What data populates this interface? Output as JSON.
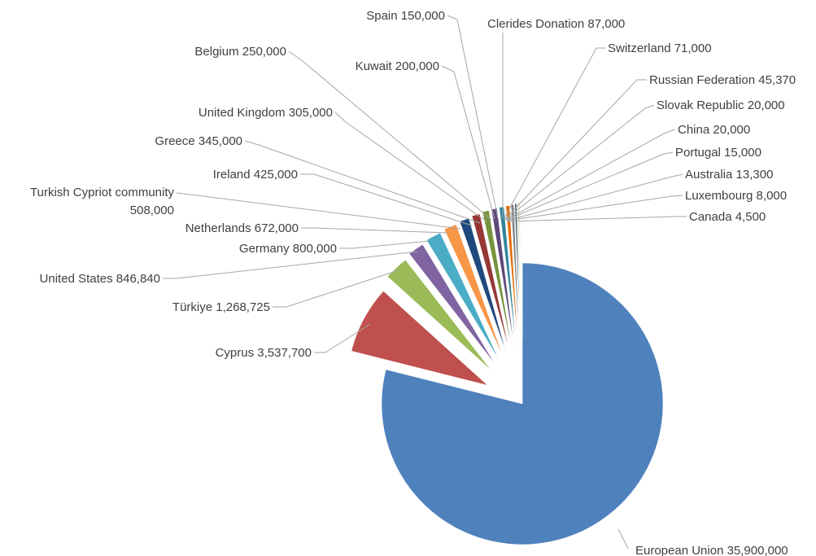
{
  "chart_data": {
    "type": "pie",
    "title": "",
    "legend": "none",
    "exploded": true,
    "slices": [
      {
        "label": "European Union",
        "value": 35900000,
        "display": "European Union 35,900,000",
        "color": "#4f81bd"
      },
      {
        "label": "Cyprus",
        "value": 3537700,
        "display": "Cyprus 3,537,700",
        "color": "#c0504d"
      },
      {
        "label": "Türkiye",
        "value": 1268725,
        "display": "Türkiye 1,268,725",
        "color": "#9bbb59"
      },
      {
        "label": "United States",
        "value": 846840,
        "display": "United States  846,840",
        "color": "#8064a2"
      },
      {
        "label": "Germany",
        "value": 800000,
        "display": "Germany 800,000",
        "color": "#4bacc6"
      },
      {
        "label": "Netherlands",
        "value": 672000,
        "display": "Netherlands 672,000",
        "color": "#f79646"
      },
      {
        "label": "Turkish Cypriot community",
        "value": 508000,
        "display": [
          "Turkish Cypriot community",
          "508,000"
        ],
        "color": "#1f497d"
      },
      {
        "label": "Ireland",
        "value": 425000,
        "display": "Ireland 425,000",
        "color": "#953735"
      },
      {
        "label": "Greece",
        "value": 345000,
        "display": "Greece  345,000",
        "color": "#77933c"
      },
      {
        "label": "United Kingdom",
        "value": 305000,
        "display": "United Kingdom 305,000",
        "color": "#5f497a"
      },
      {
        "label": "Belgium",
        "value": 250000,
        "display": "Belgium  250,000",
        "color": "#31859c"
      },
      {
        "label": "Kuwait",
        "value": 200000,
        "display": "Kuwait 200,000",
        "color": "#e46c0a"
      },
      {
        "label": "Spain",
        "value": 150000,
        "display": "Spain  150,000",
        "color": "#7f7f7f"
      },
      {
        "label": "Clerides Donation",
        "value": 87000,
        "display": "Clerides Donation 87,000",
        "color": "#17375e"
      },
      {
        "label": "Switzerland",
        "value": 71000,
        "display": "Switzerland 71,000",
        "color": "#c3d69b"
      },
      {
        "label": "Russian Federation",
        "value": 45370,
        "display": "Russian Federation 45,370",
        "color": "#e6b9b8"
      },
      {
        "label": "Slovak Republic",
        "value": 20000,
        "display": "Slovak Republic 20,000",
        "color": "#d7e4bd"
      },
      {
        "label": "China",
        "value": 20000,
        "display": "China 20,000",
        "color": "#ccc1da"
      },
      {
        "label": "Portugal",
        "value": 15000,
        "display": "Portugal 15,000",
        "color": "#b7dee8"
      },
      {
        "label": "Australia",
        "value": 13300,
        "display": "Australia  13,300",
        "color": "#fcd5b5"
      },
      {
        "label": "Luxembourg",
        "value": 8000,
        "display": "Luxembourg 8,000",
        "color": "#8eb4e3"
      },
      {
        "label": "Canada",
        "value": 4500,
        "display": "Canada 4,500",
        "color": "#d99694"
      }
    ]
  }
}
